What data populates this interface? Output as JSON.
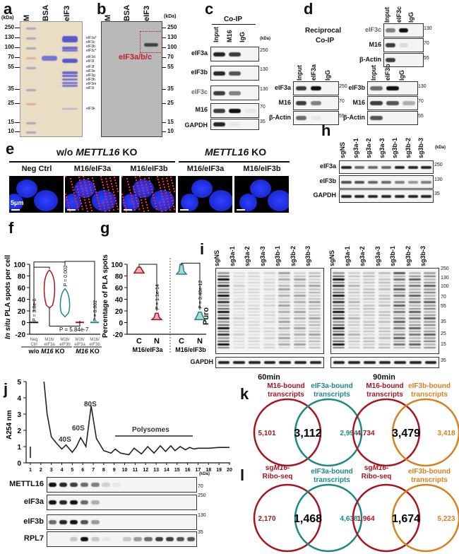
{
  "panel_labels": {
    "a": "a",
    "b": "b",
    "c": "c",
    "d": "d",
    "e": "e",
    "f": "f",
    "g": "g",
    "h": "h",
    "i": "i",
    "j": "j",
    "k": "k",
    "l": "l"
  },
  "kda": "(kDa)",
  "a": {
    "lanes": [
      "M",
      "BSA",
      "eIF3"
    ],
    "markers": [
      "250",
      "130",
      "100",
      "70",
      "55",
      "35",
      "25",
      "15",
      "10"
    ],
    "subunits": [
      "eIF3a*",
      "eIF3c",
      "eIF3b",
      "eIF3c*",
      "eIF3d",
      "eIF3l",
      "eIF3f",
      "eIF3e",
      "eIF3g",
      "eIF3h",
      "eIF3m",
      "eIF3i",
      "eIF3k"
    ]
  },
  "b": {
    "lanes": [
      "M",
      "BSA",
      "eIF3"
    ],
    "markers": [
      "250",
      "130",
      "100",
      "70",
      "55",
      "35",
      "25",
      "15",
      "10"
    ],
    "box_label": "eIF3a/b/c"
  },
  "c": {
    "title": "Co-IP",
    "lanes": [
      "Input",
      "M16",
      "IgG"
    ],
    "rows": [
      {
        "label": "eIF3a",
        "mw": "250"
      },
      {
        "label": "eIF3b",
        "mw": "130"
      },
      {
        "label": "eIF3c",
        "mw": "130"
      },
      {
        "label": "M16",
        "mw": "70"
      },
      {
        "label": "GAPDH",
        "mw": "35"
      }
    ]
  },
  "d": {
    "title_1": "Reciprocal",
    "title_2": "Co-IP",
    "blots": [
      {
        "lanes": [
          "Input",
          "eIF3c",
          "IgG"
        ],
        "rows": [
          {
            "label": "eIF3c",
            "mw": "130"
          },
          {
            "label": "M16",
            "mw": "70"
          },
          {
            "label": "β-Actin",
            "mw": "55"
          }
        ]
      },
      {
        "lanes": [
          "Input",
          "eIF3a",
          "IgG"
        ],
        "rows": [
          {
            "label": "eIF3a",
            "mw": "250"
          },
          {
            "label": "M16",
            "mw": "70"
          },
          {
            "label": "β-Actin",
            "mw": "55"
          }
        ]
      },
      {
        "lanes": [
          "Input",
          "eIF3b",
          "IgG"
        ],
        "rows": [
          {
            "label": "eIF3b",
            "mw": "130"
          },
          {
            "label": "M16",
            "mw": "70"
          },
          {
            "label": "β-Actin",
            "mw": "55"
          }
        ]
      }
    ]
  },
  "e": {
    "group_1_prefix": "w/o ",
    "group_1_gene": "METTL16",
    "group_1_suffix": " KO",
    "group_2_gene": "METTL16",
    "group_2_suffix": " KO",
    "images": [
      "Neg Ctrl",
      "M16/eIF3a",
      "M16/eIF3b",
      "M16/eIF3a",
      "M16/eIF3b"
    ],
    "scale_bar": "5μm"
  },
  "f": {
    "ylabel_italic": "In situ",
    "ylabel_rest": " PLA spots per cell",
    "yticks": [
      "100",
      "80",
      "60",
      "40",
      "20",
      "0",
      "-20"
    ],
    "categories": [
      [
        "Neg",
        "Ctrl"
      ],
      [
        "M16/",
        "eIF3a"
      ],
      [
        "M16/",
        "eIF3b"
      ],
      [
        "M16/",
        "eIF3a"
      ],
      [
        "M16/",
        "eIF3b"
      ]
    ],
    "group_1": "w/o ",
    "group_1_gene": "M16",
    "group_1_suffix": " KO",
    "group_2_gene": "M16",
    "group_2_suffix": " KO",
    "p_values": [
      "P = 3.8e-6",
      "P = 0.002",
      "P = 5.84e-7",
      "P = 0.002"
    ]
  },
  "g": {
    "ylabel": "Percentage of PLA spots",
    "yticks": [
      "100",
      "80",
      "60",
      "40",
      "20",
      "0",
      "-20"
    ],
    "categories": [
      "C",
      "N",
      "C",
      "N"
    ],
    "groups": [
      "M16/eIF3a",
      "M16/eIF3b"
    ],
    "p_values": [
      "P = 1.1e-14",
      "P = 3.48e-12"
    ]
  },
  "h": {
    "lanes": [
      "sgNS",
      "sg3a-1",
      "sg3a-2",
      "sg3a-3",
      "sg3b-1",
      "sg3b-2",
      "sg3b-3"
    ],
    "rows": [
      {
        "label": "eIF3a",
        "mw": "250"
      },
      {
        "label": "eIF3b",
        "mw": "130"
      },
      {
        "label": "GAPDH",
        "mw": "35"
      }
    ]
  },
  "i": {
    "lanes": [
      "sgNS",
      "sg3a-1",
      "sg3a-2",
      "sg3a-3",
      "sg3b-1",
      "sg3b-2",
      "sg3b-3"
    ],
    "puro": "Puro",
    "gapdh": "GAPDH",
    "markers": [
      "250",
      "130",
      "100",
      "70",
      "55",
      "35",
      "25",
      "15"
    ],
    "gapdh_mw": "35",
    "times": [
      "60min",
      "90min"
    ]
  },
  "j": {
    "ylabel": "A254 nm",
    "yticks": [
      "0",
      "1",
      "2",
      "3",
      "4",
      "5"
    ],
    "xticks": [
      "1",
      "2",
      "3",
      "4",
      "5",
      "6",
      "7",
      "8",
      "9",
      "10",
      "11",
      "12",
      "13",
      "14",
      "15",
      "16",
      "17",
      "18",
      "19",
      "20"
    ],
    "peaks": [
      "40S",
      "60S",
      "80S"
    ],
    "polysomes": "Polysomes",
    "rows": [
      {
        "label": "METTL16",
        "mw": "70"
      },
      {
        "label": "eIF3a",
        "mw": "250"
      },
      {
        "label": "eIF3b",
        "mw": "130"
      },
      {
        "label": "RPL7",
        "mw": "35"
      }
    ]
  },
  "k": {
    "venns": [
      {
        "left_title": [
          "M16-bound",
          "transcripts"
        ],
        "right_title": [
          "eIF3a-bound",
          "transcripts"
        ],
        "left": "5,101",
        "overlap": "3,112",
        "right": "2,994"
      },
      {
        "left_title": [
          "M16-bound",
          "transcripts"
        ],
        "right_title": [
          "eIF3b-bound",
          "transcripts"
        ],
        "left": "4,734",
        "overlap": "3,479",
        "right": "3,418"
      }
    ]
  },
  "l": {
    "venns": [
      {
        "left_title_sg": "sg",
        "left_title_gene": "M16",
        "left_title_dash": "-",
        "left_title_2": "Ribo-seq",
        "right_title": [
          "eIF3a-bound",
          "transcripts"
        ],
        "left": "2,170",
        "overlap": "1,468",
        "right": "4,638"
      },
      {
        "left_title_sg": "sg",
        "left_title_gene": "M16",
        "left_title_dash": "-",
        "left_title_2": "Ribo-seq",
        "right_title": [
          "eIF3b-bound",
          "transcripts"
        ],
        "left": "1,964",
        "overlap": "1,674",
        "right": "5,223"
      }
    ]
  },
  "colors": {
    "m16": "#a8141e",
    "eif3a": "#1a8a84",
    "eif3b": "#d9801c",
    "plain_red": "#c0202a"
  },
  "chart_data": [
    {
      "type": "line",
      "title": "",
      "xlabel": "Fraction",
      "ylabel": "A254 nm",
      "ylim": [
        0,
        5
      ],
      "xlim": [
        1,
        20
      ],
      "x": [
        2.3,
        2.6,
        3.0,
        3.5,
        4.0,
        4.4,
        5.0,
        5.4,
        5.8,
        6.3,
        6.8,
        7.3,
        8.0,
        8.7,
        9.1,
        9.6,
        10.4,
        10.9,
        11.6,
        12.2,
        12.8,
        13.4,
        13.9,
        14.4,
        14.8,
        15.3,
        15.8,
        16.2,
        16.6,
        17,
        18,
        19,
        20
      ],
      "y": [
        5,
        3,
        1.6,
        1.2,
        0.85,
        1.1,
        0.65,
        1.0,
        1.55,
        1.0,
        3.5,
        1.5,
        0.75,
        0.6,
        0.85,
        0.6,
        0.5,
        0.9,
        0.55,
        1.0,
        0.6,
        1.05,
        0.7,
        1.05,
        0.75,
        1.0,
        0.8,
        0.95,
        0.85,
        0.9,
        0.9,
        0.95,
        0.95
      ]
    },
    {
      "type": "violin",
      "title": "",
      "ylabel": "In situ PLA spots per cell",
      "ylim": [
        -20,
        100
      ],
      "categories": [
        "Neg Ctrl (w/o M16 KO)",
        "M16/eIF3a (w/o M16 KO)",
        "M16/eIF3b (w/o M16 KO)",
        "M16/eIF3a (M16 KO)",
        "M16/eIF3b (M16 KO)"
      ],
      "median": [
        0,
        50,
        20,
        0,
        0
      ],
      "min": [
        0,
        25,
        10,
        0,
        0
      ],
      "max": [
        2,
        90,
        58,
        2,
        2
      ]
    },
    {
      "type": "violin",
      "title": "",
      "ylabel": "Percentage of PLA spots",
      "ylim": [
        -20,
        100
      ],
      "categories": [
        "C (M16/eIF3a)",
        "N (M16/eIF3a)",
        "C (M16/eIF3b)",
        "N (M16/eIF3b)"
      ],
      "median": [
        92,
        9,
        88,
        13
      ],
      "min": [
        85,
        5,
        83,
        5
      ],
      "max": [
        95,
        16,
        100,
        18
      ]
    }
  ]
}
